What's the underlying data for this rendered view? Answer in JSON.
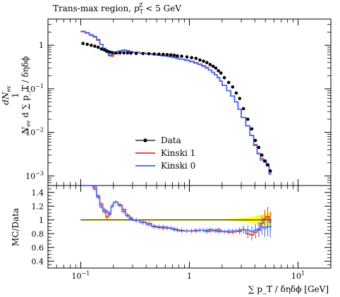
{
  "chart_data": {
    "type": "line",
    "title": "Trans-max region, p_T^Z < 5 GeV",
    "title_parts": {
      "main": "Trans-max region, ",
      "sym": "p",
      "sub": "T",
      "sup": "Z",
      "cut": " < 5 GeV"
    },
    "ylabel": "1/N_ev dN_ev/d∑p_T/δηδϕ",
    "ylabel_parts": {
      "num": "dN",
      "num_sub": "ev",
      "den_n": "N",
      "den_sub": "ev",
      "den_rest": "d ∑ p_T / δηδϕ",
      "one": "1"
    },
    "xlabel": "∑ p_T / δηδϕ [GeV]",
    "ratio_ylabel": "MC/Data",
    "x_scale": "log",
    "y_scale": "log",
    "xlim": [
      0.05,
      20
    ],
    "ylim": [
      0.0006,
      4
    ],
    "ratio_ylim": [
      0.3,
      1.5
    ],
    "x_tick_labels": [
      "10^-1",
      "1",
      "10^1"
    ],
    "y_tick_labels": [
      "10^-3",
      "10^-2",
      "10^-1",
      "1"
    ],
    "ratio_tick_labels": [
      "0.4",
      "0.6",
      "0.8",
      "1",
      "1.2",
      "1.4"
    ],
    "legend_position": "lower-left",
    "x_edges": [
      0.1,
      0.11,
      0.12,
      0.13,
      0.14,
      0.15,
      0.16,
      0.17,
      0.18,
      0.19,
      0.2,
      0.22,
      0.24,
      0.26,
      0.28,
      0.3,
      0.35,
      0.4,
      0.45,
      0.5,
      0.55,
      0.6,
      0.65,
      0.7,
      0.75,
      0.8,
      0.9,
      1.0,
      1.1,
      1.2,
      1.3,
      1.4,
      1.5,
      1.6,
      1.7,
      1.8,
      1.9,
      2.0,
      2.2,
      2.4,
      2.6,
      2.8,
      3.0,
      3.3,
      3.6,
      3.9,
      4.2,
      4.5,
      4.8,
      5.1,
      5.4,
      5.7
    ],
    "series": [
      {
        "name": "Data",
        "color": "#000000",
        "style": "points",
        "values": [
          1.1,
          1.05,
          1.0,
          0.95,
          0.9,
          0.82,
          0.78,
          0.74,
          0.7,
          0.68,
          0.67,
          0.67,
          0.67,
          0.67,
          0.66,
          0.65,
          0.645,
          0.64,
          0.63,
          0.625,
          0.62,
          0.61,
          0.6,
          0.59,
          0.57,
          0.56,
          0.54,
          0.52,
          0.5,
          0.46,
          0.43,
          0.4,
          0.36,
          0.33,
          0.3,
          0.26,
          0.23,
          0.18,
          0.14,
          0.11,
          0.08,
          0.06,
          0.035,
          0.02,
          0.012,
          0.0065,
          0.0045,
          0.003,
          0.0022,
          0.0018,
          0.0013
        ]
      },
      {
        "name": "Kinski 1",
        "color": "#ee3311",
        "style": "step",
        "values": [
          2.05,
          1.9,
          1.7,
          1.55,
          1.3,
          1.05,
          0.85,
          0.7,
          0.58,
          0.56,
          0.63,
          0.72,
          0.78,
          0.76,
          0.72,
          0.69,
          0.66,
          0.64,
          0.62,
          0.6,
          0.58,
          0.56,
          0.55,
          0.53,
          0.51,
          0.48,
          0.46,
          0.43,
          0.4,
          0.37,
          0.34,
          0.31,
          0.27,
          0.24,
          0.21,
          0.18,
          0.15,
          0.12,
          0.09,
          0.068,
          0.05,
          0.034,
          0.022,
          0.014,
          0.0085,
          0.0052,
          0.0033,
          0.0025,
          0.0023,
          0.0018,
          0.0012
        ]
      },
      {
        "name": "Kinski 0",
        "color": "#3366ff",
        "style": "step",
        "values": [
          2.1,
          1.95,
          1.75,
          1.6,
          1.35,
          1.05,
          0.85,
          0.68,
          0.6,
          0.6,
          0.66,
          0.74,
          0.77,
          0.75,
          0.71,
          0.68,
          0.65,
          0.63,
          0.61,
          0.59,
          0.57,
          0.56,
          0.54,
          0.52,
          0.5,
          0.48,
          0.45,
          0.42,
          0.39,
          0.36,
          0.33,
          0.3,
          0.27,
          0.24,
          0.21,
          0.18,
          0.15,
          0.12,
          0.09,
          0.068,
          0.05,
          0.034,
          0.022,
          0.014,
          0.0085,
          0.005,
          0.0032,
          0.0023,
          0.0021,
          0.0017,
          0.0011
        ]
      }
    ],
    "data_band": {
      "name": "Data uncertainty",
      "color": "#ffff00",
      "low": [
        0.99,
        0.99,
        0.99,
        0.99,
        0.99,
        0.99,
        0.99,
        0.99,
        0.99,
        0.99,
        0.99,
        0.99,
        0.99,
        0.99,
        0.99,
        0.99,
        0.99,
        0.99,
        0.99,
        0.99,
        0.99,
        0.99,
        0.99,
        0.99,
        0.99,
        0.99,
        0.99,
        0.99,
        0.99,
        0.99,
        0.99,
        0.99,
        0.99,
        0.99,
        0.99,
        0.99,
        0.99,
        0.99,
        0.985,
        0.98,
        0.98,
        0.975,
        0.97,
        0.96,
        0.95,
        0.94,
        0.93,
        0.92,
        0.91,
        0.9,
        0.89
      ],
      "high": [
        1.01,
        1.01,
        1.01,
        1.01,
        1.01,
        1.01,
        1.01,
        1.01,
        1.01,
        1.01,
        1.01,
        1.01,
        1.01,
        1.01,
        1.01,
        1.01,
        1.01,
        1.01,
        1.01,
        1.01,
        1.01,
        1.01,
        1.01,
        1.01,
        1.01,
        1.01,
        1.01,
        1.01,
        1.01,
        1.01,
        1.01,
        1.01,
        1.01,
        1.01,
        1.01,
        1.01,
        1.01,
        1.01,
        1.015,
        1.02,
        1.02,
        1.025,
        1.03,
        1.04,
        1.05,
        1.06,
        1.07,
        1.08,
        1.09,
        1.1,
        1.11
      ]
    },
    "ratios": [
      {
        "name": "Kinski 1",
        "color": "#ee3311",
        "values": [
          1.9,
          1.8,
          1.6,
          1.45,
          1.35,
          1.23,
          1.12,
          1.04,
          1.08,
          1.2,
          1.26,
          1.22,
          1.15,
          1.07,
          1.03,
          1.0,
          0.97,
          0.95,
          0.91,
          0.89,
          0.88,
          0.88,
          0.88,
          0.87,
          0.86,
          0.85,
          0.84,
          0.84,
          0.85,
          0.85,
          0.85,
          0.83,
          0.84,
          0.85,
          0.85,
          0.86,
          0.84,
          0.83,
          0.82,
          0.82,
          0.84,
          0.85,
          0.86,
          0.8,
          0.78,
          0.82,
          0.85,
          0.95,
          1.02,
          1.05,
          0.97
        ]
      },
      {
        "name": "Kinski 0",
        "color": "#3366ff",
        "values": [
          1.92,
          1.84,
          1.58,
          1.48,
          1.33,
          1.19,
          1.15,
          1.12,
          1.09,
          1.2,
          1.26,
          1.21,
          1.12,
          1.06,
          1.02,
          0.99,
          0.96,
          0.93,
          0.9,
          0.9,
          0.9,
          0.89,
          0.88,
          0.86,
          0.85,
          0.84,
          0.84,
          0.84,
          0.84,
          0.85,
          0.85,
          0.85,
          0.86,
          0.85,
          0.84,
          0.83,
          0.84,
          0.83,
          0.84,
          0.84,
          0.84,
          0.83,
          0.86,
          0.85,
          0.83,
          0.85,
          0.87,
          0.9,
          0.88,
          0.9,
          0.9
        ]
      }
    ]
  }
}
